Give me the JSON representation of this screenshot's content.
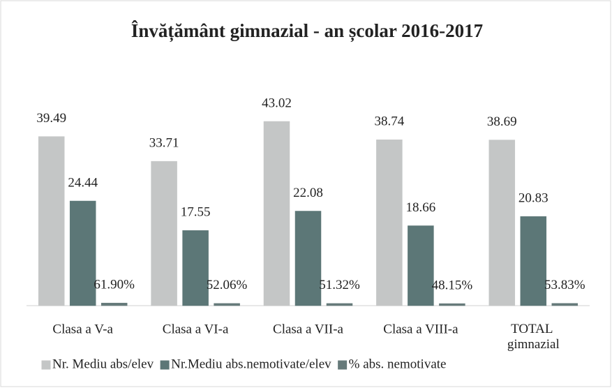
{
  "chart_data": {
    "type": "bar",
    "title": "Învățământ gimnazial - an școlar 2016-2017",
    "categories": [
      "Clasa a V-a",
      "Clasa a VI-a",
      "Clasa a VII-a",
      "Clasa a VIII-a",
      "TOTAL gimnazial"
    ],
    "series": [
      {
        "name": "Nr. Mediu abs/elev",
        "color": "#c4c6c6",
        "values": [
          39.49,
          33.71,
          43.02,
          38.74,
          38.69
        ]
      },
      {
        "name": "Nr.Mediu abs.nemotivate/elev",
        "color": "#5c7777",
        "values": [
          24.44,
          17.55,
          22.08,
          18.66,
          20.83
        ]
      },
      {
        "name": "% abs. nemotivate",
        "color": "#667a7a",
        "values": [
          0.619,
          0.5206,
          0.5132,
          0.4815,
          0.5383
        ],
        "value_labels": [
          "61.90%",
          "52.06%",
          "51.32%",
          "48.15%",
          "53.83%"
        ]
      }
    ],
    "legend": "bottom"
  }
}
